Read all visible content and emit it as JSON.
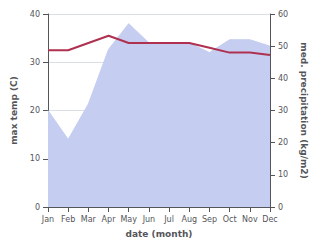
{
  "chart_data": {
    "type": "line",
    "xlabel": "date (month)",
    "ylabel": "max temp (C)",
    "y2label": "med. precipitation (kg/m2)",
    "categories": [
      "Jan",
      "Feb",
      "Mar",
      "Apr",
      "May",
      "Jun",
      "Jul",
      "Aug",
      "Sep",
      "Oct",
      "Nov",
      "Dec"
    ],
    "series": [
      {
        "type": "area",
        "axis": "y2",
        "color": "#c5cdf0",
        "values": [
          30.0,
          21.0,
          32.0,
          49.0,
          57.0,
          51.0,
          51.0,
          51.0,
          48.0,
          52.0,
          52.0,
          50.0
        ]
      },
      {
        "type": "line",
        "color": "#b03050",
        "values": [
          32.5,
          32.5,
          34.0,
          35.5,
          34.0,
          34.0,
          34.0,
          34.0,
          33.0,
          32.0,
          32.0,
          31.5
        ]
      }
    ],
    "ylim": [
      0,
      40
    ],
    "yticks": [
      0,
      10,
      20,
      30,
      40
    ],
    "y2lim": [
      0,
      60
    ],
    "y2ticks": [
      0,
      10,
      20,
      30,
      40,
      50,
      60
    ],
    "grid": true
  }
}
